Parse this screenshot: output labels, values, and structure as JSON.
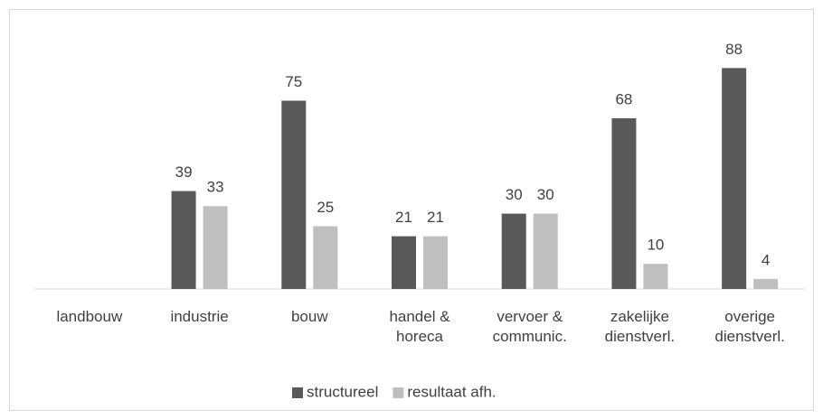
{
  "chart_data": {
    "type": "bar",
    "categories": [
      "landbouw",
      "industrie",
      "bouw",
      "handel &\nhoreca",
      "vervoer &\ncommunic.",
      "zakelijke\ndienstverl.",
      "overige\ndienstverl."
    ],
    "series": [
      {
        "name": "structureel",
        "color": "#595959",
        "values": [
          null,
          39,
          75,
          21,
          30,
          68,
          88
        ]
      },
      {
        "name": "resultaat afh.",
        "color": "#bfbfbf",
        "values": [
          null,
          33,
          25,
          21,
          30,
          10,
          4
        ]
      }
    ],
    "ylim": [
      0,
      100
    ],
    "legend": "bottom"
  }
}
